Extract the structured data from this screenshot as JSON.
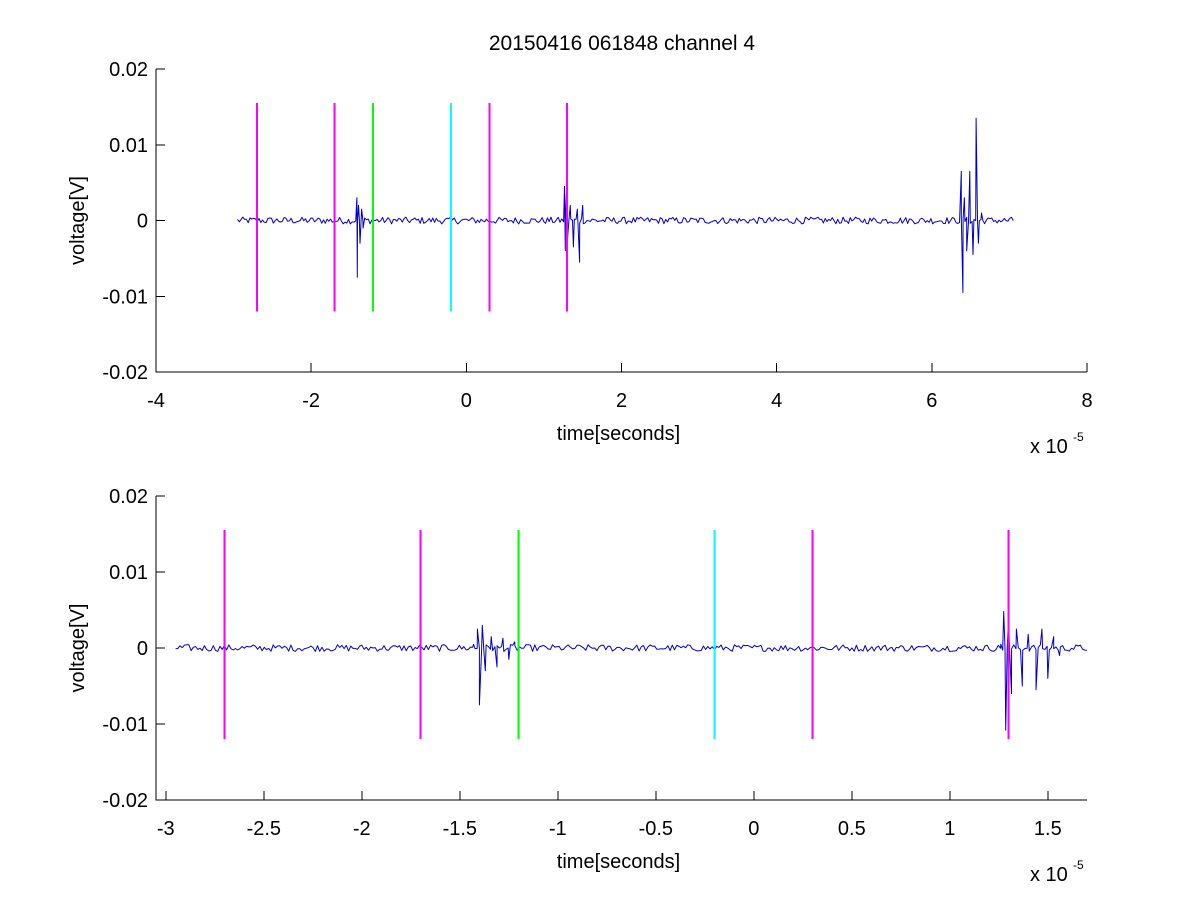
{
  "chart_data": {
    "type": "line",
    "title": "20150416 061848 channel 4",
    "colors": {
      "trace": "#0000cc",
      "magenta": "#ff00ff",
      "green": "#00ff00",
      "cyan": "#00ffff"
    },
    "panels": [
      {
        "name": "full-record",
        "xlabel": "time[seconds]",
        "ylabel": "voltage[V]",
        "x_exponent_label": "x 10",
        "x_exponent": "-5",
        "xlim": [
          -4,
          8
        ],
        "ylim": [
          -0.02,
          0.02
        ],
        "x_ticks": [
          -4,
          -2,
          0,
          2,
          4,
          6,
          8
        ],
        "x_tick_labels": [
          "-4",
          "-2",
          "0",
          "2",
          "4",
          "6",
          "8"
        ],
        "y_ticks": [
          -0.02,
          -0.01,
          0,
          0.01,
          0.02
        ],
        "y_tick_labels": [
          "-0.02",
          "-0.01",
          "0",
          "0.01",
          "0.02"
        ],
        "grid": false,
        "trace_range": [
          -2.95,
          7.05
        ],
        "bursts": [
          {
            "t": -1.41,
            "points": [
              [
                -1.41,
                0.003
              ],
              [
                -1.405,
                -0.0075
              ],
              [
                -1.39,
                0.002
              ],
              [
                -1.37,
                -0.003
              ],
              [
                -1.35,
                0.0015
              ],
              [
                -1.33,
                -0.001
              ]
            ]
          },
          {
            "t": 1.28,
            "points": [
              [
                1.265,
                0.0045
              ],
              [
                1.275,
                -0.004
              ],
              [
                1.29,
                0.0035
              ],
              [
                1.3,
                -0.003
              ],
              [
                1.34,
                0.002
              ],
              [
                1.38,
                -0.0035
              ],
              [
                1.43,
                0.0015
              ],
              [
                1.46,
                -0.0055
              ],
              [
                1.5,
                0.002
              ]
            ]
          },
          {
            "t": 6.4,
            "points": [
              [
                6.38,
                0.0065
              ],
              [
                6.4,
                -0.0095
              ],
              [
                6.42,
                0.003
              ],
              [
                6.45,
                -0.004
              ],
              [
                6.49,
                0.0065
              ],
              [
                6.53,
                -0.0045
              ],
              [
                6.57,
                0.0135
              ],
              [
                6.6,
                -0.003
              ],
              [
                6.64,
                0.001
              ]
            ]
          }
        ],
        "markers": [
          {
            "x": -2.7,
            "color": "magenta",
            "y0": -0.012,
            "y1": 0.0155
          },
          {
            "x": -1.7,
            "color": "magenta",
            "y0": -0.012,
            "y1": 0.0155
          },
          {
            "x": -1.2,
            "color": "green",
            "y0": -0.012,
            "y1": 0.0155
          },
          {
            "x": -0.2,
            "color": "cyan",
            "y0": -0.012,
            "y1": 0.0155
          },
          {
            "x": 0.3,
            "color": "magenta",
            "y0": -0.012,
            "y1": 0.0155
          },
          {
            "x": 1.3,
            "color": "magenta",
            "y0": -0.012,
            "y1": 0.0155
          }
        ]
      },
      {
        "name": "zoomed-record",
        "xlabel": "time[seconds]",
        "ylabel": "voltage[V]",
        "x_exponent_label": "x 10",
        "x_exponent": "-5",
        "xlim": [
          -3.05,
          1.7
        ],
        "ylim": [
          -0.02,
          0.02
        ],
        "x_ticks": [
          -3,
          -2.5,
          -2,
          -1.5,
          -1,
          -0.5,
          0,
          0.5,
          1,
          1.5
        ],
        "x_tick_labels": [
          "-3",
          "-2.5",
          "-2",
          "-1.5",
          "-1",
          "-0.5",
          "0",
          "0.5",
          "1",
          "1.5"
        ],
        "y_ticks": [
          -0.02,
          -0.01,
          0,
          0.01,
          0.02
        ],
        "y_tick_labels": [
          "-0.02",
          "-0.01",
          "0",
          "0.01",
          "0.02"
        ],
        "grid": false,
        "trace_range": [
          -2.95,
          1.7
        ],
        "bursts": [
          {
            "t": -1.41,
            "points": [
              [
                -1.43,
                0.0005
              ],
              [
                -1.41,
                0.0025
              ],
              [
                -1.4,
                -0.0075
              ],
              [
                -1.385,
                0.003
              ],
              [
                -1.37,
                -0.003
              ],
              [
                -1.34,
                0.0015
              ],
              [
                -1.31,
                -0.0025
              ],
              [
                -1.28,
                0.0013
              ],
              [
                -1.25,
                -0.0015
              ],
              [
                -1.22,
                0.0008
              ]
            ]
          },
          {
            "t": 1.28,
            "points": [
              [
                1.26,
                0.0005
              ],
              [
                1.275,
                0.0048
              ],
              [
                1.285,
                -0.0108
              ],
              [
                1.3,
                0.004
              ],
              [
                1.315,
                -0.006
              ],
              [
                1.34,
                0.0025
              ],
              [
                1.37,
                -0.005
              ],
              [
                1.4,
                0.0018
              ],
              [
                1.44,
                -0.0055
              ],
              [
                1.47,
                0.0025
              ],
              [
                1.5,
                -0.004
              ],
              [
                1.53,
                0.0015
              ],
              [
                1.56,
                -0.001
              ]
            ]
          }
        ],
        "markers": [
          {
            "x": -2.7,
            "color": "magenta",
            "y0": -0.012,
            "y1": 0.0155
          },
          {
            "x": -1.7,
            "color": "magenta",
            "y0": -0.012,
            "y1": 0.0155
          },
          {
            "x": -1.2,
            "color": "green",
            "y0": -0.012,
            "y1": 0.0155
          },
          {
            "x": -0.2,
            "color": "cyan",
            "y0": -0.012,
            "y1": 0.0155
          },
          {
            "x": 0.3,
            "color": "magenta",
            "y0": -0.012,
            "y1": 0.0155
          },
          {
            "x": 1.3,
            "color": "magenta",
            "y0": -0.012,
            "y1": 0.0155
          }
        ]
      }
    ]
  }
}
